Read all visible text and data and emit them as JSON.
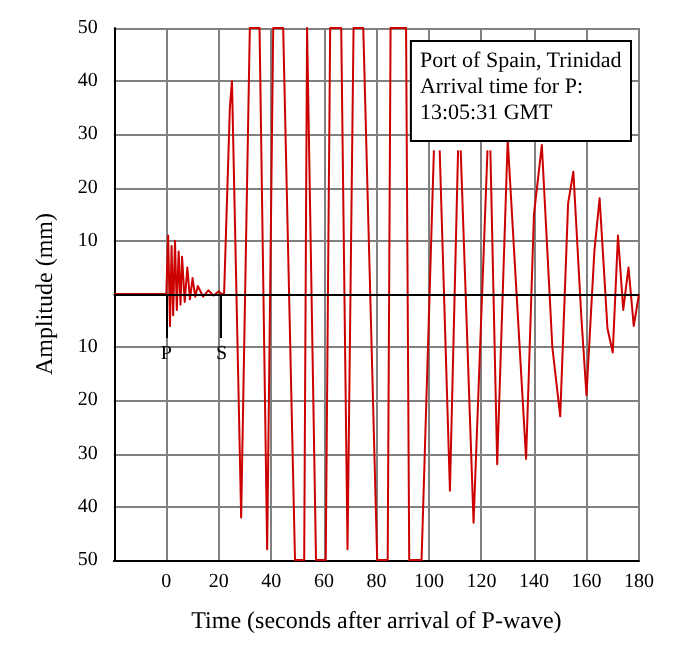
{
  "chart_data": {
    "type": "line",
    "xlabel": "Time (seconds after arrival of P-wave)",
    "ylabel": "Amplitude (mm)",
    "annotations": [
      "Port of Spain, Trinidad\nArrival time for P:\n13:05:31 GMT",
      {
        "text": "P",
        "x": 0,
        "y": 0
      },
      {
        "text": "S",
        "x": 21,
        "y": 0
      }
    ],
    "x": [
      -20,
      0,
      0.7,
      1.4,
      2,
      2.6,
      3.3,
      4,
      4.7,
      5.4,
      6,
      7,
      8,
      9,
      10,
      11,
      12,
      14,
      16,
      18,
      20,
      21,
      22,
      24.2,
      25,
      28.5,
      31.8,
      35.5,
      38.4,
      40.7,
      44.5,
      49,
      52.5,
      53.6,
      57,
      60.7,
      62.4,
      66.6,
      69,
      71.3,
      75,
      80.3,
      84.3,
      85.4,
      91.3,
      92.5,
      97.2,
      101.9,
      103,
      104.1,
      108,
      111.1,
      111.5,
      112.1,
      117,
      122.3,
      123,
      123.4,
      126,
      130,
      137,
      140,
      143,
      147,
      150,
      153,
      155,
      158,
      160,
      163,
      165,
      168,
      170,
      172,
      174,
      176,
      178,
      180
    ],
    "series": [
      {
        "color": "#cc0000",
        "values": [
          0,
          0,
          11,
          -6,
          9,
          -4,
          10,
          -3,
          8,
          -2,
          7,
          -1.5,
          5,
          -1,
          3,
          -0.5,
          1.5,
          -0.5,
          0.7,
          -0.3,
          0.5,
          0,
          0,
          35,
          40,
          -42,
          50,
          50,
          -48,
          50,
          50,
          -50,
          -50,
          50,
          -50,
          -50,
          50,
          50,
          -48,
          50,
          50,
          -50,
          -50,
          50,
          50,
          -50,
          -50,
          27,
          null,
          27,
          -37,
          27,
          null,
          27,
          -43,
          27,
          null,
          27,
          -32,
          29,
          -31,
          15,
          28,
          -10,
          -23,
          17,
          23,
          -4,
          -19,
          8,
          18,
          -6.5,
          -11,
          11,
          -3,
          5,
          -6,
          0
        ]
      }
    ],
    "xlim": [
      -20,
      180
    ],
    "xticks": [
      0,
      20,
      40,
      60,
      80,
      100,
      120,
      140,
      160,
      180
    ],
    "ylim": [
      -50,
      50
    ],
    "yticks": [
      {
        "value": -50,
        "label": "50"
      },
      {
        "value": -40,
        "label": "40"
      },
      {
        "value": -30,
        "label": "30"
      },
      {
        "value": -20,
        "label": "20"
      },
      {
        "value": -10,
        "label": "10"
      },
      {
        "value": 0,
        "label": null
      },
      10,
      20,
      30,
      40,
      50
    ],
    "ref_lines": [
      {
        "axis": "y",
        "value": 0,
        "color": "#000000"
      }
    ],
    "grid": true,
    "marker": "none",
    "line_style": "solid"
  }
}
